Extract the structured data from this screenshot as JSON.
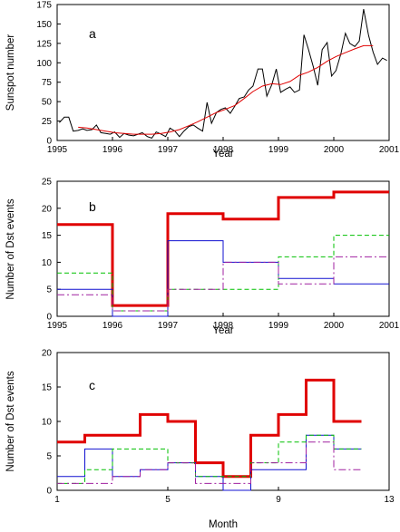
{
  "colors": {
    "black": "#000000",
    "red": "#e00000",
    "blue": "#1010d0",
    "green": "#00c000",
    "purple": "#a020a0"
  },
  "chart_data": [
    {
      "panel": "a",
      "type": "line",
      "xlabel": "Year",
      "ylabel": "Sunspot number",
      "xlim": [
        1995,
        2001
      ],
      "ylim": [
        0,
        175
      ],
      "xticks": [
        1995,
        1996,
        1997,
        1998,
        1999,
        2000,
        2001
      ],
      "yticks": [
        0,
        25,
        50,
        75,
        100,
        125,
        150,
        175
      ],
      "grid": false,
      "series": [
        {
          "color": "black",
          "style": "solid",
          "x": [
            1995.04,
            1995.13,
            1995.21,
            1995.29,
            1995.38,
            1995.46,
            1995.54,
            1995.63,
            1995.71,
            1995.79,
            1995.88,
            1995.96,
            1996.04,
            1996.13,
            1996.21,
            1996.29,
            1996.38,
            1996.46,
            1996.54,
            1996.63,
            1996.71,
            1996.79,
            1996.88,
            1996.96,
            1997.04,
            1997.13,
            1997.21,
            1997.29,
            1997.38,
            1997.46,
            1997.54,
            1997.63,
            1997.71,
            1997.79,
            1997.88,
            1997.96,
            1998.04,
            1998.13,
            1998.21,
            1998.29,
            1998.38,
            1998.46,
            1998.54,
            1998.63,
            1998.71,
            1998.79,
            1998.88,
            1998.96,
            1999.04,
            1999.13,
            1999.21,
            1999.29,
            1999.38,
            1999.46,
            1999.54,
            1999.63,
            1999.71,
            1999.79,
            1999.88,
            1999.96,
            2000.04,
            2000.13,
            2000.21,
            2000.29,
            2000.38,
            2000.46,
            2000.54,
            2000.63,
            2000.71,
            2000.79,
            2000.88,
            2000.96
          ],
          "y": [
            23,
            30,
            30,
            12,
            13,
            15,
            13,
            14,
            20,
            10,
            9,
            8,
            11,
            4,
            9,
            7,
            6,
            8,
            10,
            5,
            3,
            11,
            8,
            5,
            16,
            12,
            5,
            12,
            18,
            20,
            16,
            12,
            49,
            22,
            36,
            40,
            42,
            35,
            44,
            54,
            56,
            65,
            70,
            92,
            92,
            57,
            72,
            92,
            62,
            66,
            69,
            62,
            65,
            136,
            118,
            95,
            71,
            117,
            126,
            83,
            90,
            112,
            138,
            125,
            121,
            128,
            169,
            135,
            114,
            98,
            106,
            103
          ]
        },
        {
          "color": "red",
          "style": "solid",
          "x": [
            1995.38,
            1995.54,
            1995.71,
            1995.88,
            1996.04,
            1996.21,
            1996.38,
            1996.54,
            1996.71,
            1996.88,
            1997.04,
            1997.21,
            1997.38,
            1997.54,
            1997.71,
            1997.88,
            1998.04,
            1998.21,
            1998.38,
            1998.54,
            1998.71,
            1998.88,
            1999.04,
            1999.21,
            1999.38,
            1999.54,
            1999.71,
            1999.88,
            2000.04,
            2000.21,
            2000.38,
            2000.54,
            2000.71
          ],
          "y": [
            17,
            16,
            14,
            12,
            10,
            9,
            8,
            8,
            8,
            9,
            11,
            14,
            19,
            24,
            30,
            36,
            40,
            45,
            54,
            63,
            70,
            73,
            72,
            76,
            84,
            88,
            94,
            102,
            108,
            113,
            118,
            122,
            122
          ]
        }
      ]
    },
    {
      "panel": "b",
      "type": "line",
      "xlabel": "Year",
      "ylabel": "Number of Dst events",
      "xlim": [
        1995,
        2001
      ],
      "ylim": [
        0,
        25
      ],
      "xticks": [
        1995,
        1996,
        1997,
        1998,
        1999,
        2000,
        2001
      ],
      "yticks": [
        0,
        5,
        10,
        15,
        20,
        25
      ],
      "grid": false,
      "step_edges": [
        1995,
        1996,
        1997,
        1998,
        1999,
        2000,
        2001
      ],
      "series": [
        {
          "color": "red",
          "style": "solid",
          "width": 3,
          "values": [
            17,
            2,
            19,
            18,
            22,
            23
          ]
        },
        {
          "color": "blue",
          "style": "solid",
          "width": 1,
          "values": [
            5,
            0,
            14,
            10,
            7,
            6
          ]
        },
        {
          "color": "green",
          "style": "dash",
          "width": 1,
          "values": [
            8,
            1,
            5,
            5,
            11,
            15
          ]
        },
        {
          "color": "purple",
          "style": "dashdot",
          "width": 1,
          "values": [
            4,
            1,
            5,
            10,
            6,
            11
          ]
        }
      ]
    },
    {
      "panel": "c",
      "type": "line",
      "xlabel": "Month",
      "ylabel": "Number of Dst events",
      "xlim": [
        1,
        13
      ],
      "ylim": [
        0,
        20
      ],
      "xticks": [
        1,
        5,
        9,
        13
      ],
      "yticks": [
        0,
        5,
        10,
        15,
        20
      ],
      "grid": false,
      "step_edges": [
        1,
        2,
        3,
        4,
        5,
        6,
        7,
        8,
        9,
        10,
        11,
        12
      ],
      "series": [
        {
          "color": "red",
          "style": "solid",
          "width": 3,
          "values": [
            7,
            8,
            8,
            11,
            10,
            4,
            2,
            8,
            11,
            16,
            10
          ]
        },
        {
          "color": "blue",
          "style": "solid",
          "width": 1,
          "values": [
            2,
            6,
            2,
            3,
            4,
            2,
            0,
            3,
            3,
            8,
            6
          ]
        },
        {
          "color": "green",
          "style": "dash",
          "width": 1,
          "values": [
            1,
            3,
            6,
            6,
            4,
            2,
            2,
            4,
            7,
            8,
            6
          ]
        },
        {
          "color": "purple",
          "style": "dashdot",
          "width": 1,
          "values": [
            1,
            1,
            2,
            3,
            4,
            1,
            1,
            4,
            4,
            7,
            3
          ]
        }
      ]
    }
  ]
}
